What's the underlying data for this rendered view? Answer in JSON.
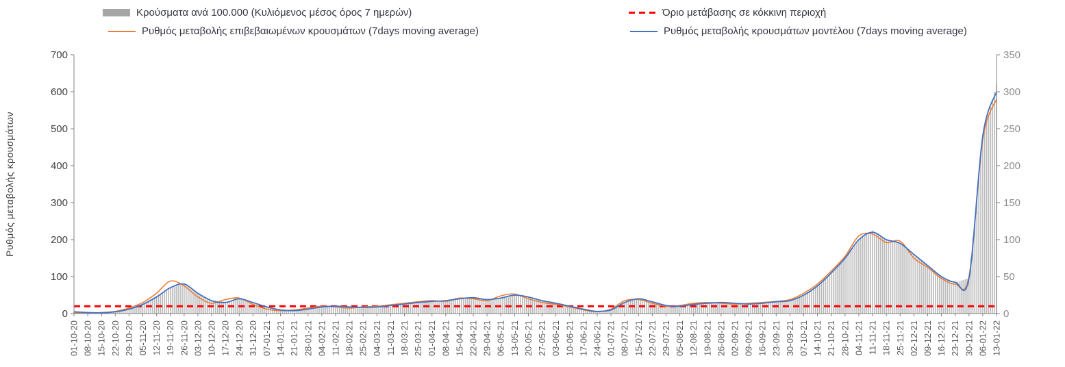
{
  "legend": {
    "items": [
      {
        "label": "Κρούσματα ανά 100.000 (Κυλιόμενος μέσος όρος 7 ημερών)",
        "type": "bar",
        "color": "#a6a6a6"
      },
      {
        "label": "Όριο μετάβασης σε κόκκινη περιοχή",
        "type": "dashed",
        "color": "#ff0000"
      },
      {
        "label": "Ρυθμός μεταβολής επιβεβαιωμένων κρουσμάτων (7days moving average)",
        "type": "line",
        "color": "#ed7d31"
      },
      {
        "label": "Ρυθμός μεταβολής κρουσμάτων μοντέλου (7days moving average)",
        "type": "line",
        "color": "#4472c4"
      }
    ]
  },
  "chart_data": {
    "type": "combo",
    "title": "",
    "ylabel_left": "Ρυθμός μεταβολής κρουσμάτων",
    "left_axis": {
      "min": 0,
      "max": 700,
      "ticks": [
        0,
        100,
        200,
        300,
        400,
        500,
        600,
        700
      ]
    },
    "right_axis": {
      "min": 0,
      "max": 350,
      "ticks": [
        0,
        50,
        100,
        150,
        200,
        250,
        300,
        350
      ]
    },
    "threshold": {
      "name": "Όριο μετάβασης σε κόκκινη περιοχή",
      "value_left": 20,
      "color": "#ff0000"
    },
    "x_tick_labels": [
      "01-10-20",
      "08-10-20",
      "15-10-20",
      "22-10-20",
      "29-10-20",
      "05-11-20",
      "12-11-20",
      "19-11-20",
      "26-11-20",
      "03-12-20",
      "10-12-20",
      "17-12-20",
      "24-12-20",
      "31-12-20",
      "07-01-21",
      "14-01-21",
      "21-01-21",
      "28-01-21",
      "04-02-21",
      "11-02-21",
      "18-02-21",
      "25-02-21",
      "04-03-21",
      "11-03-21",
      "18-03-21",
      "25-03-21",
      "01-04-21",
      "08-04-21",
      "15-04-21",
      "22-04-21",
      "29-04-21",
      "06-05-21",
      "13-05-21",
      "20-05-21",
      "27-05-21",
      "03-06-21",
      "10-06-21",
      "17-06-21",
      "24-06-21",
      "01-07-21",
      "08-07-21",
      "15-07-21",
      "22-07-21",
      "29-07-21",
      "05-08-21",
      "12-08-21",
      "19-08-21",
      "26-08-21",
      "02-09-21",
      "09-09-21",
      "16-09-21",
      "23-09-21",
      "30-09-21",
      "07-10-21",
      "14-10-21",
      "21-10-21",
      "28-10-21",
      "04-11-21",
      "11-11-21",
      "18-11-21",
      "25-11-21",
      "02-12-21",
      "09-12-21",
      "16-12-21",
      "23-12-21",
      "30-12-21",
      "06-01-22",
      "13-01-22"
    ],
    "series": [
      {
        "name": "Κρούσματα ανά 100.000 (Κυλιόμενος μέσος όρος 7 ημερών)",
        "type": "bar",
        "axis": "right",
        "color": "#b8b8b8",
        "values": [
          2,
          1,
          1,
          3,
          6,
          13,
          24,
          36,
          40,
          28,
          18,
          16,
          20,
          15,
          9,
          5,
          4,
          6,
          9,
          10,
          9,
          9,
          9,
          11,
          13,
          15,
          17,
          18,
          20,
          21,
          19,
          21,
          25,
          22,
          17,
          14,
          10,
          6,
          3,
          5,
          15,
          20,
          16,
          11,
          10,
          13,
          14,
          15,
          14,
          13,
          14,
          16,
          18,
          25,
          38,
          55,
          75,
          100,
          112,
          100,
          95,
          80,
          65,
          50,
          42,
          48,
          240,
          310
        ]
      },
      {
        "name": "Ρυθμός μεταβολής επιβεβαιωμένων κρουσμάτων (7days moving average)",
        "type": "line",
        "axis": "left",
        "color": "#ed7d31",
        "values": [
          3,
          2,
          3,
          6,
          15,
          30,
          55,
          88,
          75,
          45,
          28,
          38,
          42,
          25,
          12,
          8,
          10,
          15,
          20,
          18,
          15,
          18,
          20,
          24,
          28,
          32,
          35,
          33,
          42,
          40,
          35,
          48,
          53,
          40,
          30,
          25,
          18,
          10,
          5,
          12,
          35,
          38,
          28,
          20,
          22,
          28,
          30,
          28,
          26,
          28,
          30,
          33,
          38,
          55,
          80,
          115,
          155,
          210,
          215,
          192,
          196,
          150,
          125,
          95,
          80,
          100,
          470,
          580
        ]
      },
      {
        "name": "Ρυθμός μεταβολής κρουσμάτων μοντέλου (7days moving average)",
        "type": "line",
        "axis": "left",
        "color": "#4472c4",
        "values": [
          5,
          3,
          2,
          5,
          12,
          25,
          45,
          70,
          80,
          55,
          35,
          30,
          40,
          30,
          18,
          10,
          8,
          12,
          18,
          20,
          18,
          17,
          18,
          22,
          26,
          30,
          33,
          35,
          40,
          43,
          38,
          42,
          50,
          45,
          35,
          28,
          20,
          12,
          6,
          10,
          30,
          40,
          32,
          22,
          20,
          25,
          28,
          30,
          28,
          26,
          28,
          32,
          35,
          50,
          75,
          110,
          150,
          200,
          220,
          200,
          190,
          160,
          130,
          100,
          85,
          95,
          480,
          600
        ]
      }
    ]
  }
}
